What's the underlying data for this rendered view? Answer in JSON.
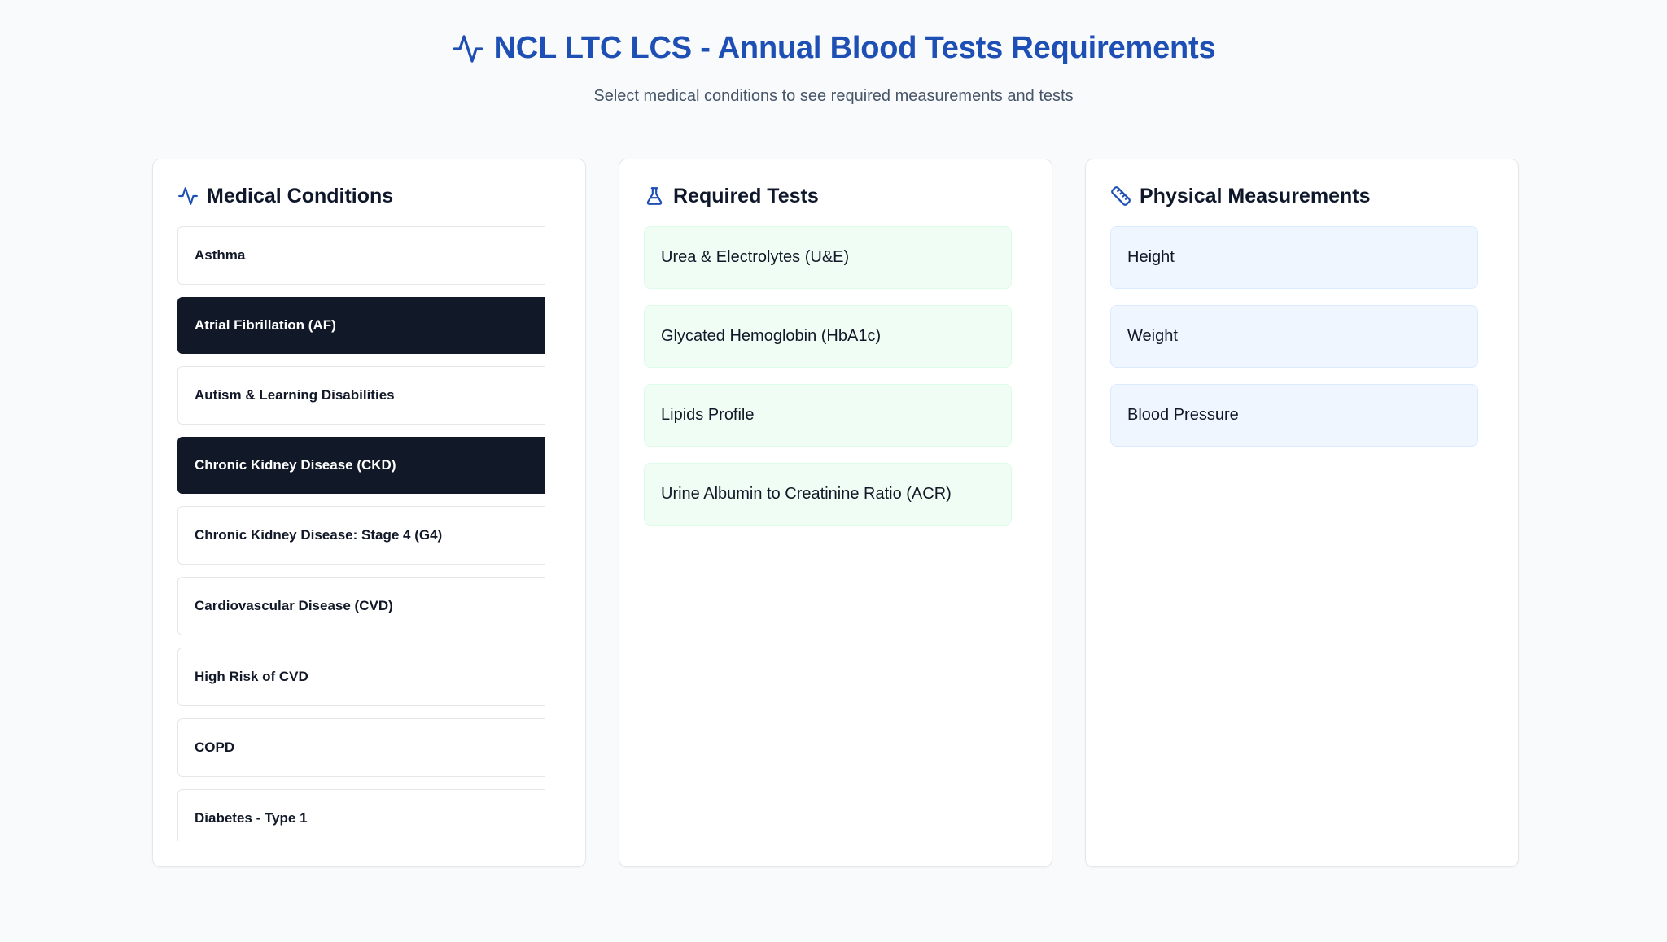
{
  "header": {
    "title": "NCL LTC LCS - Annual Blood Tests Requirements",
    "subtitle": "Select medical conditions to see required measurements and tests",
    "title_icon": "activity-pulse-icon"
  },
  "colors": {
    "accent": "#1e4fb4",
    "selected_bg": "#111827",
    "test_bg": "#f0fdf4",
    "measurement_bg": "#eff6ff",
    "page_bg": "#f8fafc"
  },
  "conditions": {
    "title": "Medical Conditions",
    "icon": "activity-pulse-icon",
    "items": [
      {
        "label": "Asthma",
        "selected": false
      },
      {
        "label": "Atrial Fibrillation (AF)",
        "selected": true
      },
      {
        "label": "Autism & Learning Disabilities",
        "selected": false
      },
      {
        "label": "Chronic Kidney Disease (CKD)",
        "selected": true
      },
      {
        "label": "Chronic Kidney Disease: Stage 4 (G4)",
        "selected": false
      },
      {
        "label": "Cardiovascular Disease (CVD)",
        "selected": false
      },
      {
        "label": "High Risk of CVD",
        "selected": false
      },
      {
        "label": "COPD",
        "selected": false
      },
      {
        "label": "Diabetes - Type 1",
        "selected": false
      }
    ]
  },
  "tests": {
    "title": "Required Tests",
    "icon": "flask-icon",
    "items": [
      "Urea & Electrolytes (U&E)",
      "Glycated Hemoglobin (HbA1c)",
      "Lipids Profile",
      "Urine Albumin to Creatinine Ratio (ACR)"
    ]
  },
  "measurements": {
    "title": "Physical Measurements",
    "icon": "ruler-icon",
    "items": [
      "Height",
      "Weight",
      "Blood Pressure"
    ]
  }
}
